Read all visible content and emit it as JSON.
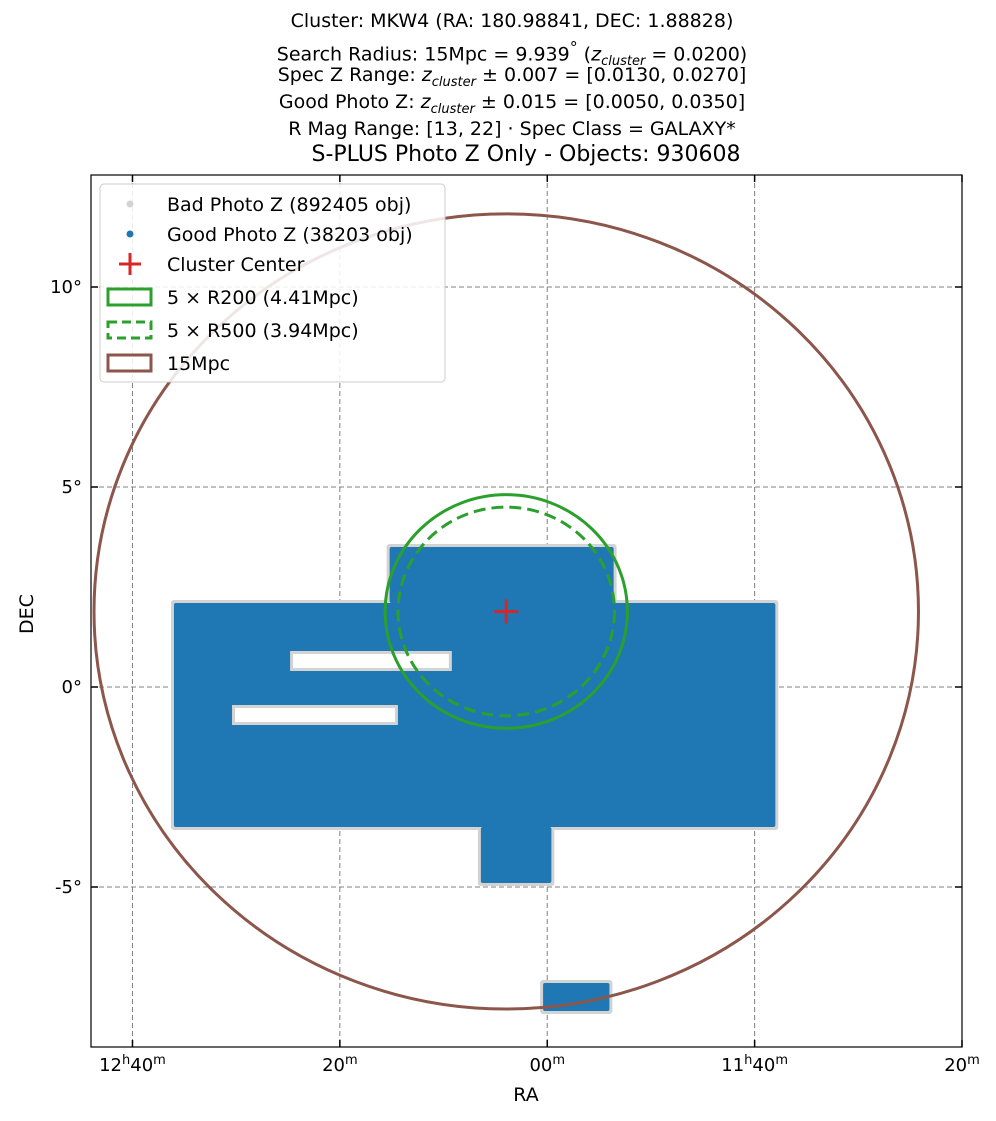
{
  "header": {
    "line1": "Cluster: MKW4 (RA: 180.98841, DEC: 1.88828)",
    "line2_prefix": "Search Radius: 15Mpc = 9.939",
    "line2_deg": "°",
    "line2_paren_open": " (",
    "line2_z": "z",
    "line2_sub": "cluster",
    "line2_suffix": " = 0.0200)",
    "line3_prefix": "Spec Z Range: ",
    "line3_z": "z",
    "line3_sub": "cluster",
    "line3_suffix": " ± 0.007 = [0.0130, 0.0270]",
    "line4_prefix": "Good Photo Z: ",
    "line4_z": "z",
    "line4_sub": "cluster",
    "line4_suffix": " ± 0.015 = [0.0050, 0.0350]",
    "line5": "R Mag Range: [13, 22] · Spec Class = GALAXY*"
  },
  "chart_data": {
    "type": "scatter",
    "title": "S-PLUS Photo Z Only - Objects: 930608",
    "xlabel": "RA",
    "ylabel": "DEC",
    "x_inverted": true,
    "xlim_deg": [
      191.0,
      170.0
    ],
    "ylim_deg": [
      -9.0,
      12.8
    ],
    "x_ticks": [
      {
        "ra_deg": 190.0,
        "h": "12",
        "m": "40"
      },
      {
        "ra_deg": 185.0,
        "h": "",
        "m": "20"
      },
      {
        "ra_deg": 180.0,
        "h": "",
        "m": "00"
      },
      {
        "ra_deg": 175.0,
        "h": "11",
        "m": "40"
      },
      {
        "ra_deg": 170.0,
        "h": "",
        "m": "20"
      }
    ],
    "y_ticks": [
      {
        "dec_deg": 10,
        "label": "10°"
      },
      {
        "dec_deg": 5,
        "label": "5°"
      },
      {
        "dec_deg": 0,
        "label": "0°"
      },
      {
        "dec_deg": -5,
        "label": "-5°"
      }
    ],
    "grid": true,
    "cluster_center": {
      "ra": 180.98841,
      "dec": 1.88828
    },
    "coverage_regions_deg": [
      {
        "ra_min": 174.5,
        "ra_max": 189.0,
        "dec_min": -3.5,
        "dec_max": 2.1
      },
      {
        "ra_min": 178.4,
        "ra_max": 183.8,
        "dec_min": 2.1,
        "dec_max": 3.5
      },
      {
        "ra_min": 179.9,
        "ra_max": 181.6,
        "dec_min": -4.9,
        "dec_max": -3.5
      },
      {
        "ra_min": 178.5,
        "ra_max": 180.1,
        "dec_min": -8.1,
        "dec_max": -7.4
      }
    ],
    "coverage_gaps_deg": [
      {
        "ra_min": 182.3,
        "ra_max": 186.2,
        "dec_min": 0.4,
        "dec_max": 0.9
      },
      {
        "ra_min": 183.6,
        "ra_max": 187.6,
        "dec_min": -0.95,
        "dec_max": -0.45
      }
    ],
    "circles": [
      {
        "name": "5 × R200 (4.41Mpc)",
        "radius_deg": 2.92,
        "color": "#2ca02c",
        "style": "solid"
      },
      {
        "name": "5 × R500 (3.94Mpc)",
        "radius_deg": 2.61,
        "color": "#2ca02c",
        "style": "dashed"
      },
      {
        "name": "15Mpc",
        "radius_deg": 9.939,
        "color": "#8c564b",
        "style": "solid"
      }
    ],
    "legend": {
      "placement": "upper-left",
      "entries": [
        {
          "label": "Bad Photo Z (892405 obj)",
          "kind": "dot",
          "color": "#d3d3d3"
        },
        {
          "label": "Good Photo Z (38203 obj)",
          "kind": "dot",
          "color": "#1f77b4"
        },
        {
          "label": "Cluster Center",
          "kind": "plus",
          "color": "#d62728"
        },
        {
          "label": "5 × R200 (4.41Mpc)",
          "kind": "box-solid",
          "color": "#2ca02c"
        },
        {
          "label": "5 × R500 (3.94Mpc)",
          "kind": "box-dashed",
          "color": "#2ca02c"
        },
        {
          "label": "15Mpc",
          "kind": "box-solid",
          "color": "#8c564b"
        }
      ]
    },
    "colors": {
      "good": "#1f77b4",
      "bad": "#d3d3d3",
      "center": "#d62728",
      "r200": "#2ca02c",
      "r500": "#2ca02c",
      "mpc15": "#8c564b",
      "grid": "#808080"
    }
  }
}
